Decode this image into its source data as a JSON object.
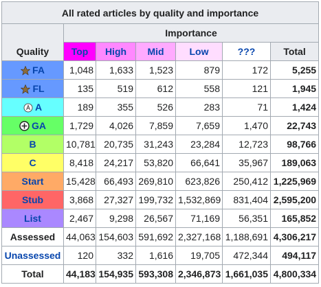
{
  "table": {
    "title": "All rated articles by quality and importance",
    "importance_header": "Importance",
    "quality_header": "Quality",
    "columns": [
      "Top",
      "High",
      "Mid",
      "Low",
      "???",
      "Total"
    ],
    "rows": [
      {
        "label": "FA",
        "cells": [
          "1,048",
          "1,633",
          "1,523",
          "879",
          "172",
          "5,255"
        ]
      },
      {
        "label": "FL",
        "cells": [
          "135",
          "519",
          "612",
          "558",
          "121",
          "1,945"
        ]
      },
      {
        "label": "A",
        "cells": [
          "189",
          "355",
          "526",
          "283",
          "71",
          "1,424"
        ]
      },
      {
        "label": "GA",
        "cells": [
          "1,729",
          "4,026",
          "7,859",
          "7,659",
          "1,470",
          "22,743"
        ]
      },
      {
        "label": "B",
        "cells": [
          "10,781",
          "20,735",
          "31,243",
          "23,284",
          "12,723",
          "98,766"
        ]
      },
      {
        "label": "C",
        "cells": [
          "8,418",
          "24,217",
          "53,820",
          "66,641",
          "35,967",
          "189,063"
        ]
      },
      {
        "label": "Start",
        "cells": [
          "15,428",
          "66,493",
          "269,810",
          "623,826",
          "250,412",
          "1,225,969"
        ]
      },
      {
        "label": "Stub",
        "cells": [
          "3,868",
          "27,327",
          "199,732",
          "1,532,869",
          "831,404",
          "2,595,200"
        ]
      },
      {
        "label": "List",
        "cells": [
          "2,467",
          "9,298",
          "26,567",
          "71,169",
          "56,351",
          "165,852"
        ]
      },
      {
        "label": "Assessed",
        "cells": [
          "44,063",
          "154,603",
          "591,692",
          "2,327,168",
          "1,188,691",
          "4,306,217"
        ]
      },
      {
        "label": "Unassessed",
        "cells": [
          "120",
          "332",
          "1,616",
          "19,705",
          "472,344",
          "494,117"
        ]
      },
      {
        "label": "Total",
        "cells": [
          "44,183",
          "154,935",
          "593,308",
          "2,346,873",
          "1,661,035",
          "4,800,334"
        ]
      }
    ]
  }
}
